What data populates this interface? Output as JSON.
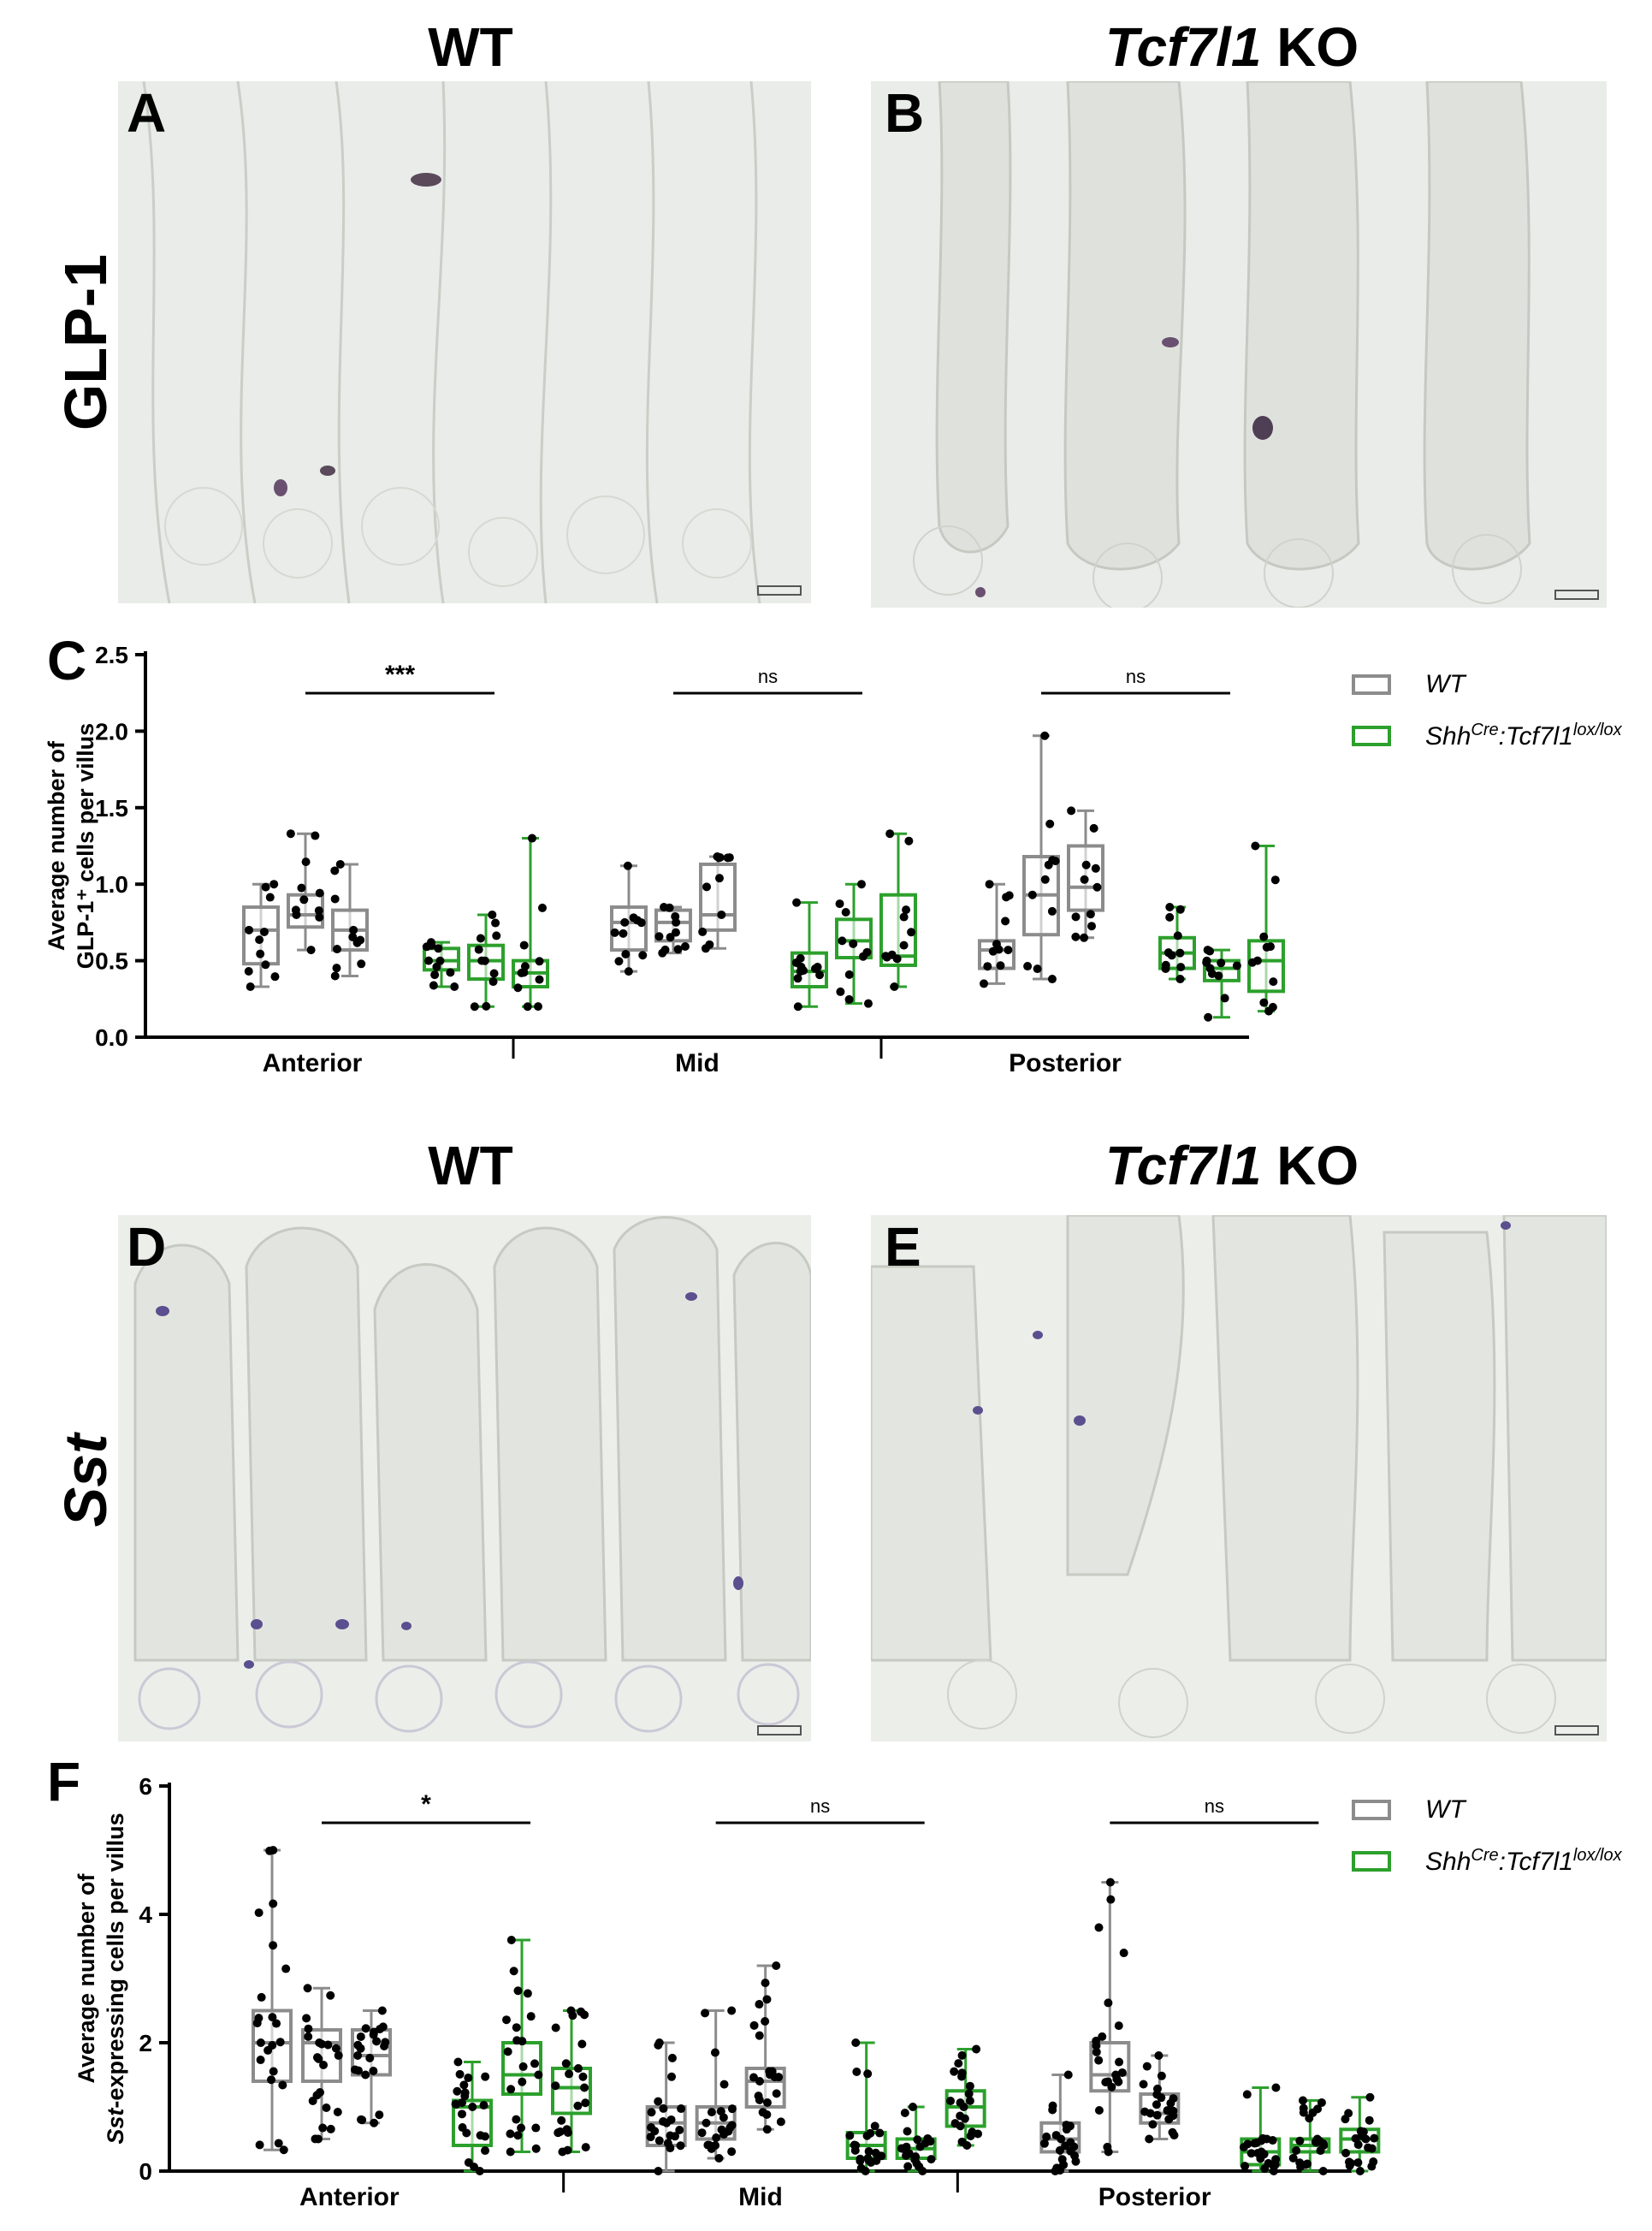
{
  "colors": {
    "wt": "#8c8c8c",
    "ko": "#2ca02c",
    "points": "#000000"
  },
  "figure": {
    "col_titles": [
      {
        "plain": "WT",
        "italic": ""
      },
      {
        "italic": "Tcf7l1",
        "plain": " KO"
      }
    ],
    "panels": {
      "A": "A",
      "B": "B",
      "C": "C",
      "D": "D",
      "E": "E",
      "F": "F"
    },
    "row_labels": {
      "glp1": "GLP-1",
      "sst": "Sst"
    }
  },
  "legend": {
    "wt": "WT",
    "ko_base1": "Shh",
    "ko_sup1": "Cre",
    "ko_base2": ":Tcf7l1",
    "ko_sup2": "lox/lox"
  },
  "chart_data": [
    {
      "type": "box",
      "panel": "C",
      "ylabel_line1": "Average number of",
      "ylabel_line2": "GLP-1⁺ cells per villus",
      "ylim": [
        0,
        2.5
      ],
      "yticks": [
        "0.0",
        "0.5",
        "1.0",
        "1.5",
        "2.0",
        "2.5"
      ],
      "groups": [
        "Anterior",
        "Mid",
        "Posterior"
      ],
      "significance": [
        "***",
        "ns",
        "ns"
      ],
      "series": [
        {
          "group": "Anterior",
          "genotype": "WT",
          "min": 0.33,
          "q1": 0.48,
          "median": 0.7,
          "q3": 0.85,
          "max": 1.0
        },
        {
          "group": "Anterior",
          "genotype": "WT",
          "min": 0.57,
          "q1": 0.72,
          "median": 0.8,
          "q3": 0.93,
          "max": 1.33
        },
        {
          "group": "Anterior",
          "genotype": "WT",
          "min": 0.4,
          "q1": 0.57,
          "median": 0.7,
          "q3": 0.83,
          "max": 1.13
        },
        {
          "group": "Anterior",
          "genotype": "KO",
          "min": 0.33,
          "q1": 0.44,
          "median": 0.5,
          "q3": 0.58,
          "max": 0.62
        },
        {
          "group": "Anterior",
          "genotype": "KO",
          "min": 0.2,
          "q1": 0.38,
          "median": 0.5,
          "q3": 0.6,
          "max": 0.8
        },
        {
          "group": "Anterior",
          "genotype": "KO",
          "min": 0.2,
          "q1": 0.33,
          "median": 0.42,
          "q3": 0.5,
          "max": 1.3
        },
        {
          "group": "Mid",
          "genotype": "WT",
          "min": 0.43,
          "q1": 0.57,
          "median": 0.75,
          "q3": 0.85,
          "max": 1.12
        },
        {
          "group": "Mid",
          "genotype": "WT",
          "min": 0.55,
          "q1": 0.63,
          "median": 0.75,
          "q3": 0.83,
          "max": 0.85
        },
        {
          "group": "Mid",
          "genotype": "WT",
          "min": 0.58,
          "q1": 0.7,
          "median": 0.8,
          "q3": 1.13,
          "max": 1.18
        },
        {
          "group": "Mid",
          "genotype": "KO",
          "min": 0.2,
          "q1": 0.33,
          "median": 0.43,
          "q3": 0.55,
          "max": 0.88
        },
        {
          "group": "Mid",
          "genotype": "KO",
          "min": 0.22,
          "q1": 0.52,
          "median": 0.63,
          "q3": 0.77,
          "max": 1.0
        },
        {
          "group": "Mid",
          "genotype": "KO",
          "min": 0.33,
          "q1": 0.47,
          "median": 0.53,
          "q3": 0.93,
          "max": 1.33
        },
        {
          "group": "Posterior",
          "genotype": "WT",
          "min": 0.35,
          "q1": 0.45,
          "median": 0.57,
          "q3": 0.63,
          "max": 1.0
        },
        {
          "group": "Posterior",
          "genotype": "WT",
          "min": 0.38,
          "q1": 0.67,
          "median": 0.93,
          "q3": 1.18,
          "max": 1.97
        },
        {
          "group": "Posterior",
          "genotype": "WT",
          "min": 0.65,
          "q1": 0.83,
          "median": 0.98,
          "q3": 1.25,
          "max": 1.48
        },
        {
          "group": "Posterior",
          "genotype": "KO",
          "min": 0.38,
          "q1": 0.45,
          "median": 0.55,
          "q3": 0.65,
          "max": 0.85
        },
        {
          "group": "Posterior",
          "genotype": "KO",
          "min": 0.13,
          "q1": 0.37,
          "median": 0.45,
          "q3": 0.5,
          "max": 0.57
        },
        {
          "group": "Posterior",
          "genotype": "KO",
          "min": 0.17,
          "q1": 0.3,
          "median": 0.5,
          "q3": 0.63,
          "max": 1.25
        }
      ]
    },
    {
      "type": "box",
      "panel": "F",
      "ylabel_line1": "Average number of",
      "ylabel_line2_italic": "Sst",
      "ylabel_line2_rest": "-expressing  cells per villus",
      "ylim": [
        0,
        6
      ],
      "yticks": [
        "0",
        "2",
        "4",
        "6"
      ],
      "groups": [
        "Anterior",
        "Mid",
        "Posterior"
      ],
      "significance": [
        "*",
        "ns",
        "ns"
      ],
      "series": [
        {
          "group": "Anterior",
          "genotype": "WT",
          "min": 0.33,
          "q1": 1.4,
          "median": 2.0,
          "q3": 2.5,
          "max": 5.0
        },
        {
          "group": "Anterior",
          "genotype": "WT",
          "min": 0.5,
          "q1": 1.4,
          "median": 2.0,
          "q3": 2.2,
          "max": 2.85
        },
        {
          "group": "Anterior",
          "genotype": "WT",
          "min": 0.75,
          "q1": 1.5,
          "median": 1.8,
          "q3": 2.2,
          "max": 2.5
        },
        {
          "group": "Anterior",
          "genotype": "KO",
          "min": 0.0,
          "q1": 0.4,
          "median": 1.0,
          "q3": 1.1,
          "max": 1.7
        },
        {
          "group": "Anterior",
          "genotype": "KO",
          "min": 0.3,
          "q1": 1.2,
          "median": 1.5,
          "q3": 2.0,
          "max": 3.6
        },
        {
          "group": "Anterior",
          "genotype": "KO",
          "min": 0.3,
          "q1": 0.9,
          "median": 1.3,
          "q3": 1.6,
          "max": 2.5
        },
        {
          "group": "Mid",
          "genotype": "WT",
          "min": 0.0,
          "q1": 0.4,
          "median": 0.75,
          "q3": 1.0,
          "max": 2.0
        },
        {
          "group": "Mid",
          "genotype": "WT",
          "min": 0.2,
          "q1": 0.5,
          "median": 0.75,
          "q3": 1.0,
          "max": 2.5
        },
        {
          "group": "Mid",
          "genotype": "WT",
          "min": 0.65,
          "q1": 1.0,
          "median": 1.4,
          "q3": 1.6,
          "max": 3.2
        },
        {
          "group": "Mid",
          "genotype": "KO",
          "min": 0.0,
          "q1": 0.2,
          "median": 0.4,
          "q3": 0.6,
          "max": 2.0
        },
        {
          "group": "Mid",
          "genotype": "KO",
          "min": 0.0,
          "q1": 0.2,
          "median": 0.35,
          "q3": 0.5,
          "max": 1.0
        },
        {
          "group": "Mid",
          "genotype": "KO",
          "min": 0.4,
          "q1": 0.7,
          "median": 1.0,
          "q3": 1.25,
          "max": 1.9
        },
        {
          "group": "Posterior",
          "genotype": "WT",
          "min": 0.0,
          "q1": 0.3,
          "median": 0.5,
          "q3": 0.75,
          "max": 1.5
        },
        {
          "group": "Posterior",
          "genotype": "WT",
          "min": 0.3,
          "q1": 1.25,
          "median": 1.5,
          "q3": 2.0,
          "max": 4.5
        },
        {
          "group": "Posterior",
          "genotype": "WT",
          "min": 0.5,
          "q1": 0.75,
          "median": 0.9,
          "q3": 1.2,
          "max": 1.8
        },
        {
          "group": "Posterior",
          "genotype": "KO",
          "min": 0.0,
          "q1": 0.1,
          "median": 0.3,
          "q3": 0.5,
          "max": 1.3
        },
        {
          "group": "Posterior",
          "genotype": "KO",
          "min": 0.0,
          "q1": 0.3,
          "median": 0.4,
          "q3": 0.5,
          "max": 1.1
        },
        {
          "group": "Posterior",
          "genotype": "KO",
          "min": 0.0,
          "q1": 0.3,
          "median": 0.5,
          "q3": 0.65,
          "max": 1.15
        }
      ]
    }
  ]
}
